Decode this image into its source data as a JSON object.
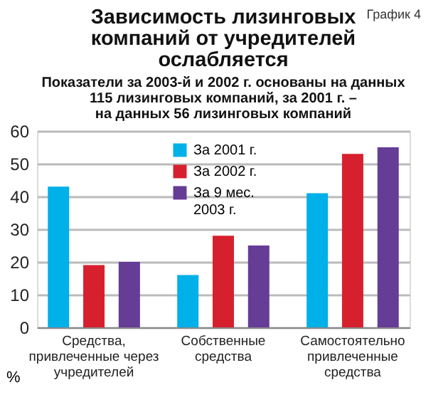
{
  "chart_data": {
    "type": "bar",
    "title": "Зависимость лизинговых\nкомпаний от учредителей\nослабляется",
    "subtitle": "Показатели за 2003-й и 2002 г. основаны на данных\n115 лизинговых компаний, за 2001 г. –\nна данных 56 лизинговых компаний",
    "ylabel": "%",
    "annotations": [
      "График 4"
    ],
    "categories": [
      "Средства,\nпривлеченные через\nучредителей",
      "Собственные\nсредства",
      "Самостоятельно\nпривлеченные\nсредства"
    ],
    "series": [
      {
        "name": "За 2001 г.",
        "color": "#00b0e8",
        "values": [
          43,
          16,
          41
        ]
      },
      {
        "name": "За 2002 г.",
        "color": "#d7202e",
        "values": [
          19,
          28,
          53
        ]
      },
      {
        "name": "За 9 мес.\n2003 г.",
        "color": "#653c96",
        "values": [
          20,
          25,
          55
        ]
      }
    ],
    "ylim": [
      0,
      60
    ],
    "yticks": [
      0,
      10,
      20,
      30,
      40,
      50,
      60
    ],
    "grid": "y",
    "legend": "top"
  }
}
